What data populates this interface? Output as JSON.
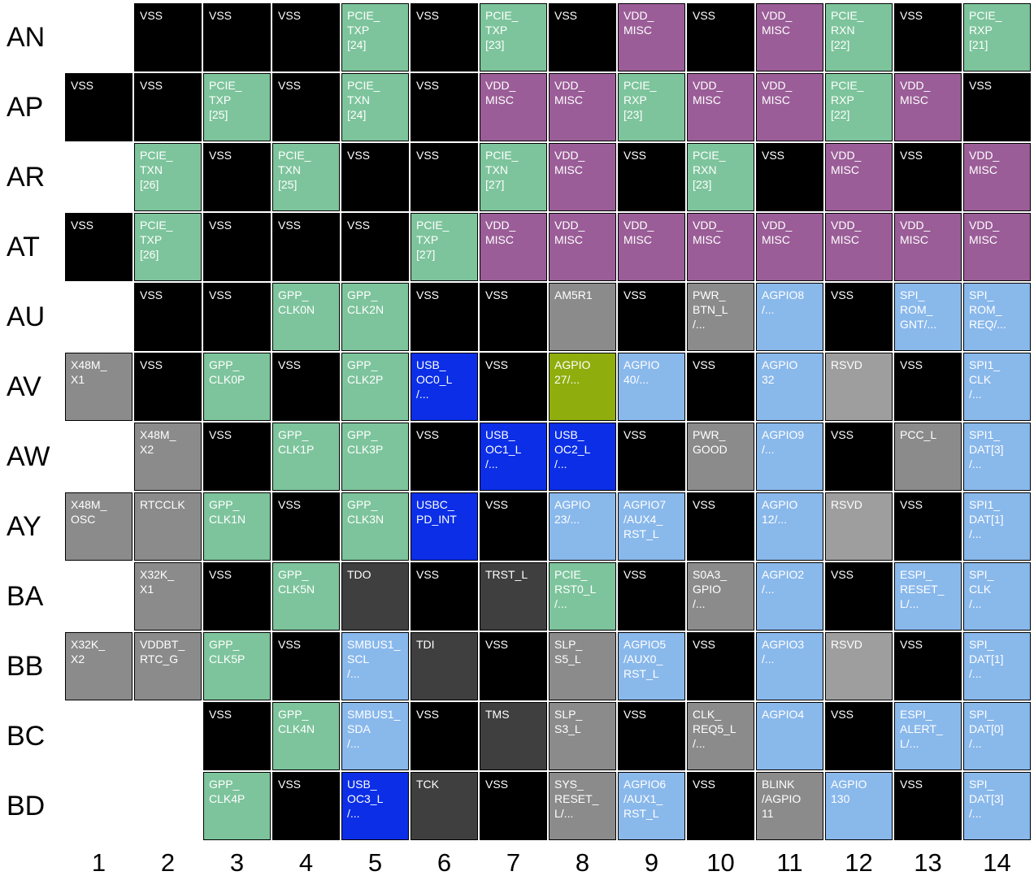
{
  "grid": {
    "colors": {
      "empty": "transparent",
      "vss": "#000000",
      "green": "#7dc49c",
      "purple": "#9a5d97",
      "gray": "#8b8b8b",
      "rsvd": "#9e9e9e",
      "darkgray": "#3f3f3f",
      "blue": "#0b2ee6",
      "lightblue": "#89b8eb",
      "olive": "#8fad0c"
    },
    "col_labels": [
      "1",
      "2",
      "3",
      "4",
      "5",
      "6",
      "7",
      "8",
      "9",
      "10",
      "11",
      "12",
      "13",
      "14"
    ],
    "rows": [
      {
        "label": "AN",
        "cells": [
          {
            "t": "",
            "c": "empty"
          },
          {
            "t": "VSS",
            "c": "vss"
          },
          {
            "t": "VSS",
            "c": "vss"
          },
          {
            "t": "VSS",
            "c": "vss"
          },
          {
            "t": "PCIE_\nTXP\n[24]",
            "c": "green"
          },
          {
            "t": "VSS",
            "c": "vss"
          },
          {
            "t": "PCIE_\nTXP\n[23]",
            "c": "green"
          },
          {
            "t": "VSS",
            "c": "vss"
          },
          {
            "t": "VDD_\nMISC",
            "c": "purple"
          },
          {
            "t": "VSS",
            "c": "vss"
          },
          {
            "t": "VDD_\nMISC",
            "c": "purple"
          },
          {
            "t": "PCIE_\nRXN\n[22]",
            "c": "green"
          },
          {
            "t": "VSS",
            "c": "vss"
          },
          {
            "t": "PCIE_\nRXP\n[21]",
            "c": "green"
          }
        ]
      },
      {
        "label": "AP",
        "cells": [
          {
            "t": "VSS",
            "c": "vss"
          },
          {
            "t": "VSS",
            "c": "vss"
          },
          {
            "t": "PCIE_\nTXP\n[25]",
            "c": "green"
          },
          {
            "t": "VSS",
            "c": "vss"
          },
          {
            "t": "PCIE_\nTXN\n[24]",
            "c": "green"
          },
          {
            "t": "VSS",
            "c": "vss"
          },
          {
            "t": "VDD_\nMISC",
            "c": "purple"
          },
          {
            "t": "VDD_\nMISC",
            "c": "purple"
          },
          {
            "t": "PCIE_\nRXP\n[23]",
            "c": "green"
          },
          {
            "t": "VDD_\nMISC",
            "c": "purple"
          },
          {
            "t": "VDD_\nMISC",
            "c": "purple"
          },
          {
            "t": "PCIE_\nRXP\n[22]",
            "c": "green"
          },
          {
            "t": "VDD_\nMISC",
            "c": "purple"
          },
          {
            "t": "VSS",
            "c": "vss"
          }
        ]
      },
      {
        "label": "AR",
        "cells": [
          {
            "t": "",
            "c": "empty"
          },
          {
            "t": "PCIE_\nTXN\n[26]",
            "c": "green"
          },
          {
            "t": "VSS",
            "c": "vss"
          },
          {
            "t": "PCIE_\nTXN\n[25]",
            "c": "green"
          },
          {
            "t": "VSS",
            "c": "vss"
          },
          {
            "t": "VSS",
            "c": "vss"
          },
          {
            "t": "PCIE_\nTXN\n[27]",
            "c": "green"
          },
          {
            "t": "VDD_\nMISC",
            "c": "purple"
          },
          {
            "t": "VSS",
            "c": "vss"
          },
          {
            "t": "PCIE_\nRXN\n[23]",
            "c": "green"
          },
          {
            "t": "VSS",
            "c": "vss"
          },
          {
            "t": "VDD_\nMISC",
            "c": "purple"
          },
          {
            "t": "VSS",
            "c": "vss"
          },
          {
            "t": "VDD_\nMISC",
            "c": "purple"
          }
        ]
      },
      {
        "label": "AT",
        "cells": [
          {
            "t": "VSS",
            "c": "vss"
          },
          {
            "t": "PCIE_\nTXP\n[26]",
            "c": "green"
          },
          {
            "t": "VSS",
            "c": "vss"
          },
          {
            "t": "VSS",
            "c": "vss"
          },
          {
            "t": "VSS",
            "c": "vss"
          },
          {
            "t": "PCIE_\nTXP\n[27]",
            "c": "green"
          },
          {
            "t": "VDD_\nMISC",
            "c": "purple"
          },
          {
            "t": "VDD_\nMISC",
            "c": "purple"
          },
          {
            "t": "VDD_\nMISC",
            "c": "purple"
          },
          {
            "t": "VDD_\nMISC",
            "c": "purple"
          },
          {
            "t": "VDD_\nMISC",
            "c": "purple"
          },
          {
            "t": "VDD_\nMISC",
            "c": "purple"
          },
          {
            "t": "VDD_\nMISC",
            "c": "purple"
          },
          {
            "t": "VDD_\nMISC",
            "c": "purple"
          }
        ]
      },
      {
        "label": "AU",
        "cells": [
          {
            "t": "",
            "c": "empty"
          },
          {
            "t": "VSS",
            "c": "vss"
          },
          {
            "t": "VSS",
            "c": "vss"
          },
          {
            "t": "GPP_\nCLK0N",
            "c": "green"
          },
          {
            "t": "GPP_\nCLK2N",
            "c": "green"
          },
          {
            "t": "VSS",
            "c": "vss"
          },
          {
            "t": "VSS",
            "c": "vss"
          },
          {
            "t": "AM5R1",
            "c": "gray"
          },
          {
            "t": "VSS",
            "c": "vss"
          },
          {
            "t": "PWR_\nBTN_L\n/...",
            "c": "gray"
          },
          {
            "t": "AGPIO8\n/...",
            "c": "lightblue"
          },
          {
            "t": "VSS",
            "c": "vss"
          },
          {
            "t": "SPI_\nROM_\nGNT/...",
            "c": "lightblue"
          },
          {
            "t": "SPI_\nROM_\nREQ/...",
            "c": "lightblue"
          }
        ]
      },
      {
        "label": "AV",
        "cells": [
          {
            "t": "X48M_\nX1",
            "c": "gray"
          },
          {
            "t": "VSS",
            "c": "vss"
          },
          {
            "t": "GPP_\nCLK0P",
            "c": "green"
          },
          {
            "t": "VSS",
            "c": "vss"
          },
          {
            "t": "GPP_\nCLK2P",
            "c": "green"
          },
          {
            "t": "USB_\nOC0_L\n/...",
            "c": "blue"
          },
          {
            "t": "VSS",
            "c": "vss"
          },
          {
            "t": "AGPIO\n27/...",
            "c": "olive"
          },
          {
            "t": "AGPIO\n40/...",
            "c": "lightblue"
          },
          {
            "t": "VSS",
            "c": "vss"
          },
          {
            "t": "AGPIO\n32",
            "c": "lightblue"
          },
          {
            "t": "RSVD",
            "c": "rsvd"
          },
          {
            "t": "VSS",
            "c": "vss"
          },
          {
            "t": "SPI1_\nCLK\n/...",
            "c": "lightblue"
          }
        ]
      },
      {
        "label": "AW",
        "cells": [
          {
            "t": "",
            "c": "empty"
          },
          {
            "t": "X48M_\nX2",
            "c": "gray"
          },
          {
            "t": "VSS",
            "c": "vss"
          },
          {
            "t": "GPP_\nCLK1P",
            "c": "green"
          },
          {
            "t": "GPP_\nCLK3P",
            "c": "green"
          },
          {
            "t": "VSS",
            "c": "vss"
          },
          {
            "t": "USB_\nOC1_L\n/...",
            "c": "blue"
          },
          {
            "t": "USB_\nOC2_L\n/...",
            "c": "blue"
          },
          {
            "t": "VSS",
            "c": "vss"
          },
          {
            "t": "PWR_\nGOOD",
            "c": "gray"
          },
          {
            "t": "AGPIO9\n/...",
            "c": "lightblue"
          },
          {
            "t": "VSS",
            "c": "vss"
          },
          {
            "t": "PCC_L",
            "c": "gray"
          },
          {
            "t": "SPI1_\nDAT[3]\n/...",
            "c": "lightblue"
          }
        ]
      },
      {
        "label": "AY",
        "cells": [
          {
            "t": "X48M_\nOSC",
            "c": "gray"
          },
          {
            "t": "RTCCLK",
            "c": "gray"
          },
          {
            "t": "GPP_\nCLK1N",
            "c": "green"
          },
          {
            "t": "VSS",
            "c": "vss"
          },
          {
            "t": "GPP_\nCLK3N",
            "c": "green"
          },
          {
            "t": "USBC_\nPD_INT",
            "c": "blue"
          },
          {
            "t": "VSS",
            "c": "vss"
          },
          {
            "t": "AGPIO\n23/...",
            "c": "lightblue"
          },
          {
            "t": "AGPIO7\n/AUX4_\nRST_L",
            "c": "lightblue"
          },
          {
            "t": "VSS",
            "c": "vss"
          },
          {
            "t": "AGPIO\n12/...",
            "c": "lightblue"
          },
          {
            "t": "RSVD",
            "c": "rsvd"
          },
          {
            "t": "VSS",
            "c": "vss"
          },
          {
            "t": "SPI1_\nDAT[1]\n/...",
            "c": "lightblue"
          }
        ]
      },
      {
        "label": "BA",
        "cells": [
          {
            "t": "",
            "c": "empty"
          },
          {
            "t": "X32K_\nX1",
            "c": "gray"
          },
          {
            "t": "VSS",
            "c": "vss"
          },
          {
            "t": "GPP_\nCLK5N",
            "c": "green"
          },
          {
            "t": "TDO",
            "c": "darkgray"
          },
          {
            "t": "VSS",
            "c": "vss"
          },
          {
            "t": "TRST_L",
            "c": "darkgray"
          },
          {
            "t": "PCIE_\nRST0_L\n/...",
            "c": "green"
          },
          {
            "t": "VSS",
            "c": "vss"
          },
          {
            "t": "S0A3_\nGPIO\n/...",
            "c": "gray"
          },
          {
            "t": "AGPIO2\n/...",
            "c": "lightblue"
          },
          {
            "t": "VSS",
            "c": "vss"
          },
          {
            "t": "ESPI_\nRESET_\nL/...",
            "c": "lightblue"
          },
          {
            "t": "SPI_\nCLK\n/...",
            "c": "lightblue"
          }
        ]
      },
      {
        "label": "BB",
        "cells": [
          {
            "t": "X32K_\nX2",
            "c": "gray"
          },
          {
            "t": "VDDBT_\nRTC_G",
            "c": "gray"
          },
          {
            "t": "GPP_\nCLK5P",
            "c": "green"
          },
          {
            "t": "VSS",
            "c": "vss"
          },
          {
            "t": "SMBUS1_\nSCL\n/...",
            "c": "lightblue"
          },
          {
            "t": "TDI",
            "c": "darkgray"
          },
          {
            "t": "VSS",
            "c": "vss"
          },
          {
            "t": "SLP_\nS5_L",
            "c": "gray"
          },
          {
            "t": "AGPIO5\n/AUX0_\nRST_L",
            "c": "lightblue"
          },
          {
            "t": "VSS",
            "c": "vss"
          },
          {
            "t": "AGPIO3\n/...",
            "c": "lightblue"
          },
          {
            "t": "RSVD",
            "c": "rsvd"
          },
          {
            "t": "VSS",
            "c": "vss"
          },
          {
            "t": "SPI_\nDAT[1]\n/...",
            "c": "lightblue"
          }
        ]
      },
      {
        "label": "BC",
        "cells": [
          {
            "t": "",
            "c": "empty"
          },
          {
            "t": "",
            "c": "empty"
          },
          {
            "t": "VSS",
            "c": "vss"
          },
          {
            "t": "GPP_\nCLK4N",
            "c": "green"
          },
          {
            "t": "SMBUS1_\nSDA\n/...",
            "c": "lightblue"
          },
          {
            "t": "VSS",
            "c": "vss"
          },
          {
            "t": "TMS",
            "c": "darkgray"
          },
          {
            "t": "SLP_\nS3_L",
            "c": "gray"
          },
          {
            "t": "VSS",
            "c": "vss"
          },
          {
            "t": "CLK_\nREQ5_L\n/...",
            "c": "gray"
          },
          {
            "t": "AGPIO4",
            "c": "lightblue"
          },
          {
            "t": "VSS",
            "c": "vss"
          },
          {
            "t": "ESPI_\nALERT_\nL/...",
            "c": "lightblue"
          },
          {
            "t": "SPI_\nDAT[0]\n/...",
            "c": "lightblue"
          }
        ]
      },
      {
        "label": "BD",
        "cells": [
          {
            "t": "",
            "c": "empty"
          },
          {
            "t": "",
            "c": "empty"
          },
          {
            "t": "GPP_\nCLK4P",
            "c": "green"
          },
          {
            "t": "VSS",
            "c": "vss"
          },
          {
            "t": "USB_\nOC3_L\n/...",
            "c": "blue"
          },
          {
            "t": "TCK",
            "c": "darkgray"
          },
          {
            "t": "VSS",
            "c": "vss"
          },
          {
            "t": "SYS_\nRESET_\nL/...",
            "c": "gray"
          },
          {
            "t": "AGPIO6\n/AUX1_\nRST_L",
            "c": "lightblue"
          },
          {
            "t": "VSS",
            "c": "vss"
          },
          {
            "t": "BLINK\n/AGPIO\n11",
            "c": "gray"
          },
          {
            "t": "AGPIO\n130",
            "c": "lightblue"
          },
          {
            "t": "VSS",
            "c": "vss"
          },
          {
            "t": "SPI_\nDAT[3]\n/...",
            "c": "lightblue"
          }
        ]
      }
    ]
  }
}
